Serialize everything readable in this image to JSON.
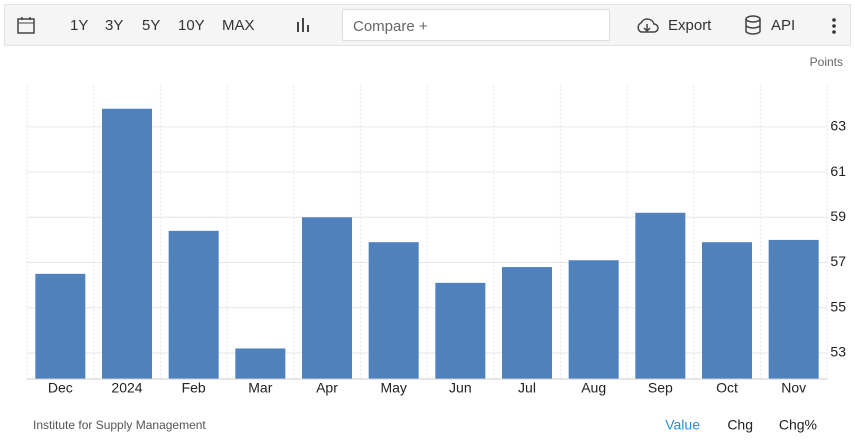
{
  "toolbar": {
    "ranges": [
      "1Y",
      "3Y",
      "5Y",
      "10Y",
      "MAX"
    ],
    "compare": "Compare +",
    "export": "Export",
    "api": "API"
  },
  "chart_data": {
    "type": "bar",
    "unit": "Points",
    "source": "Institute for Supply Management",
    "categories": [
      "Dec",
      "2024",
      "Feb",
      "Mar",
      "Apr",
      "May",
      "Jun",
      "Jul",
      "Aug",
      "Sep",
      "Oct",
      "Nov"
    ],
    "values": [
      56.5,
      63.8,
      58.4,
      53.2,
      59.0,
      57.9,
      56.1,
      56.8,
      57.1,
      59.2,
      57.9,
      58.0
    ],
    "color": "#4f81bd",
    "ylim": [
      51.85,
      64.85
    ],
    "yticks": [
      53,
      55,
      57,
      59,
      61,
      63
    ],
    "grid": true
  },
  "footer": {
    "tabs": [
      "Value",
      "Chg",
      "Chg%"
    ]
  }
}
